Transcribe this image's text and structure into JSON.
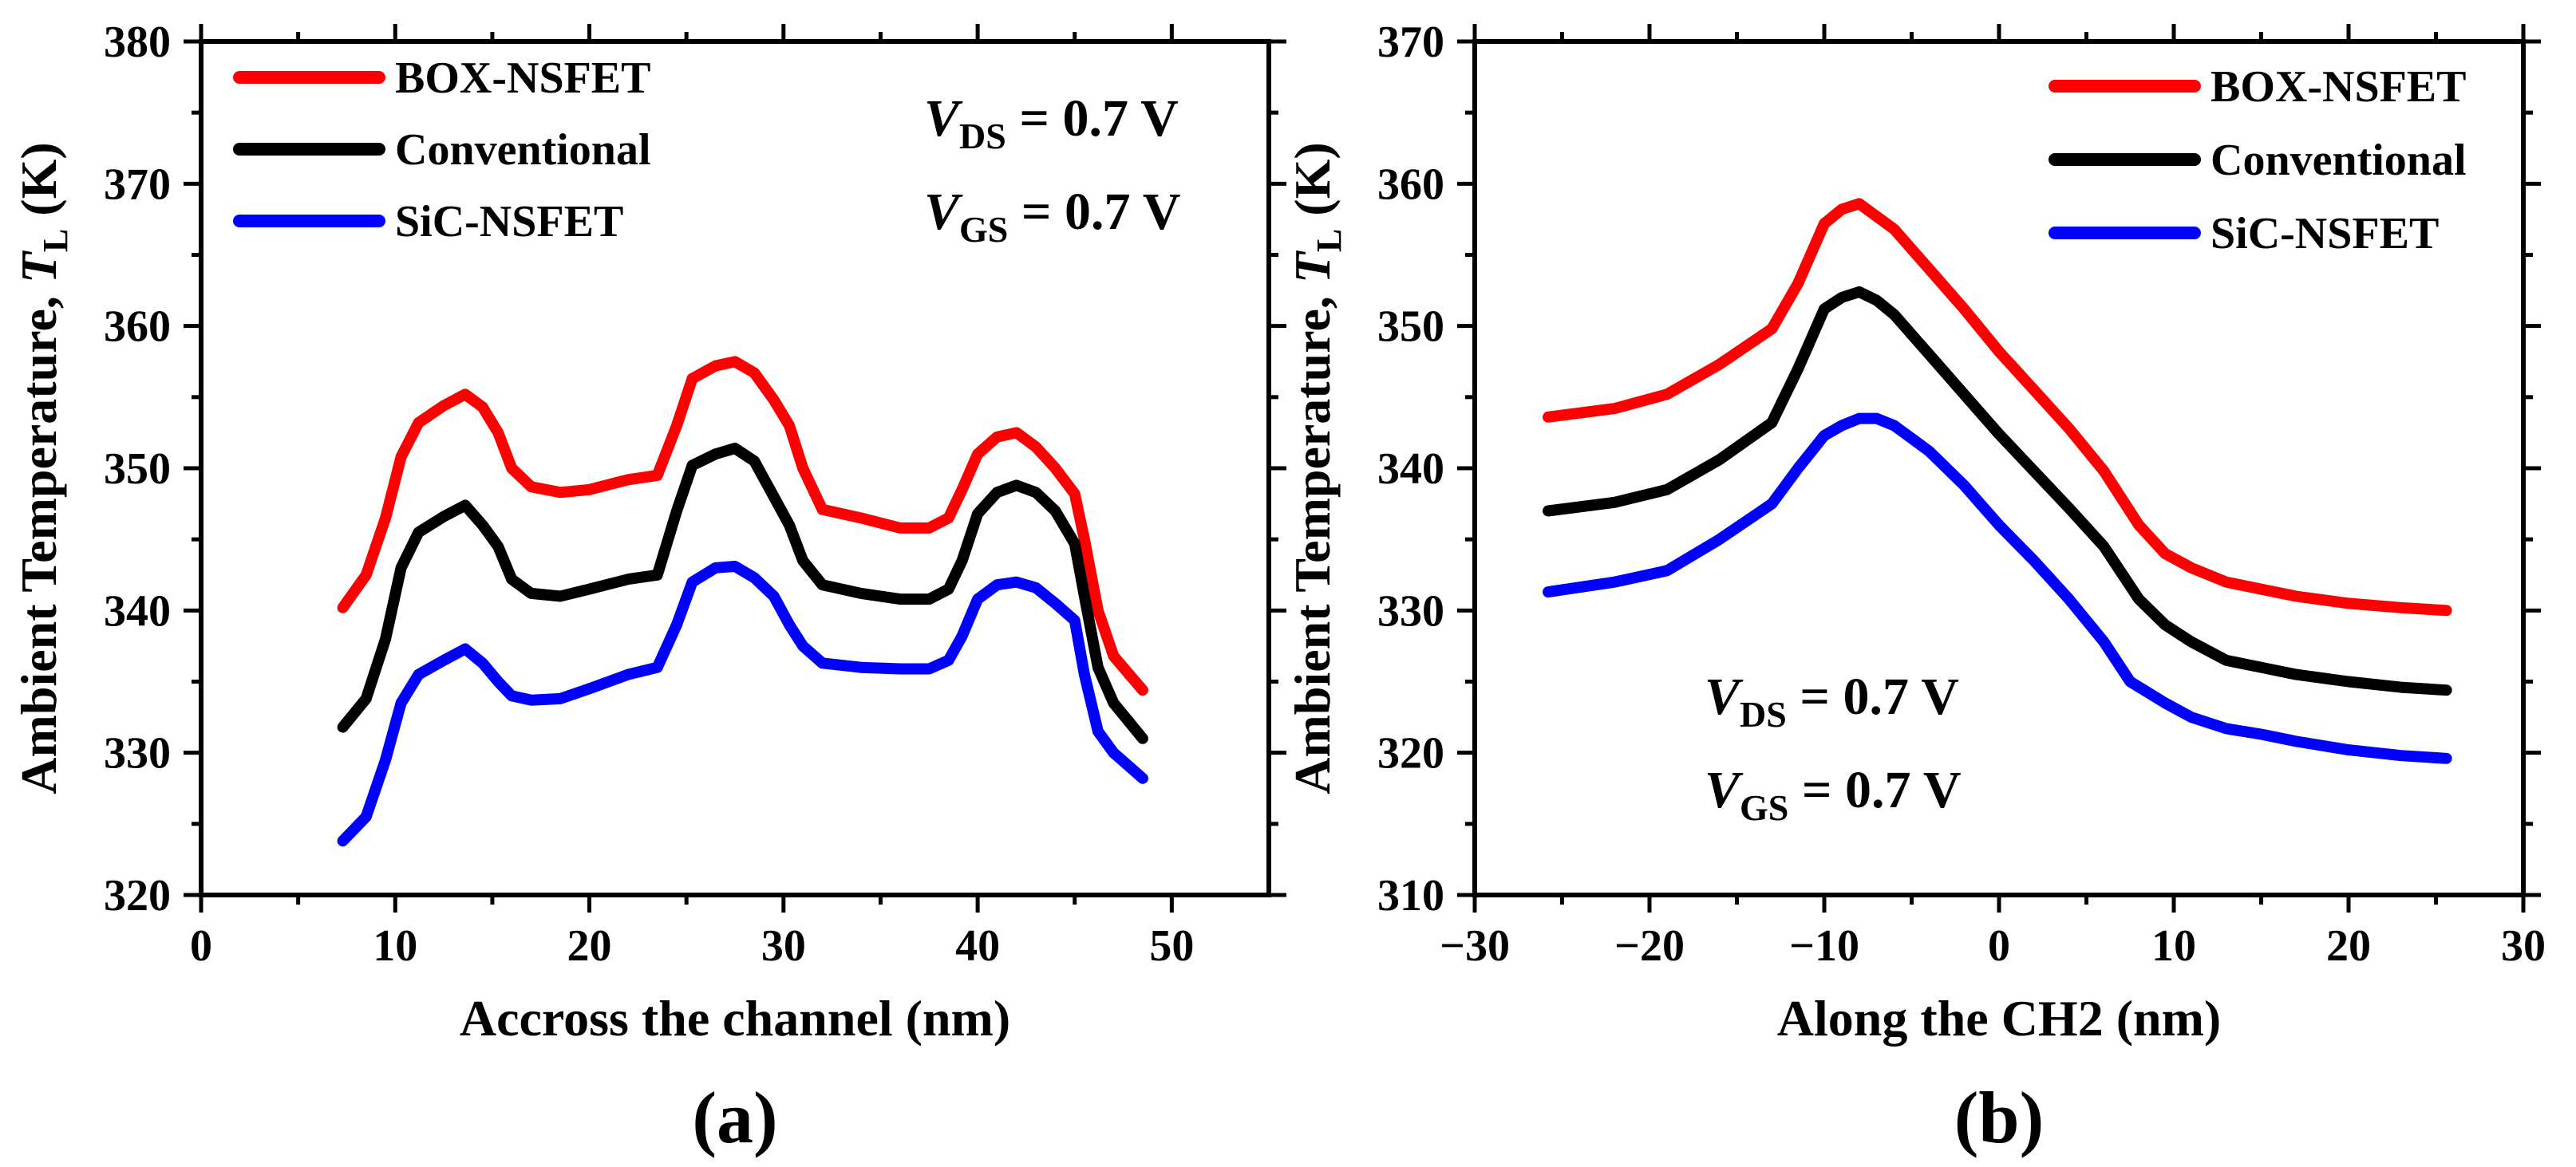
{
  "chart_data": [
    {
      "type": "line",
      "panel_label": "(a)",
      "xlabel": "Accross the channel (nm)",
      "ylabel_main": "Ambient Temperature, ",
      "ylabel_sym": "T",
      "ylabel_sub": "L",
      "ylabel_unit": " (K)",
      "xlim": [
        0,
        55
      ],
      "ylim": [
        320,
        380
      ],
      "xticks": [
        0,
        10,
        20,
        30,
        40,
        50
      ],
      "yticks": [
        320,
        330,
        340,
        350,
        360,
        370,
        380
      ],
      "legend_position": "top-left",
      "conditions": [
        {
          "sym": "V",
          "sub": "DS",
          "text": " = 0.7 V"
        },
        {
          "sym": "V",
          "sub": "GS",
          "text": " = 0.7 V"
        }
      ],
      "conditions_position": "top-right",
      "series": [
        {
          "name": "BOX-NSFET",
          "color": "#ff0000",
          "x": [
            7.3,
            8.5,
            9.5,
            10.3,
            11.2,
            12.5,
            13.6,
            14.5,
            15.3,
            16.0,
            17.0,
            18.5,
            20.0,
            22.0,
            23.5,
            24.5,
            25.3,
            26.5,
            27.5,
            28.5,
            29.5,
            30.3,
            31.0,
            32.0,
            34.0,
            36.0,
            37.5,
            38.5,
            39.2,
            40.0,
            41.0,
            42.0,
            43.0,
            44.0,
            45.0,
            45.5,
            46.2,
            47.0,
            48.5
          ],
          "y": [
            340.2,
            342.5,
            346.5,
            350.8,
            353.2,
            354.4,
            355.2,
            354.3,
            352.5,
            350.0,
            348.7,
            348.3,
            348.5,
            349.2,
            349.5,
            353.0,
            356.3,
            357.2,
            357.5,
            356.7,
            354.8,
            353.0,
            350.0,
            347.1,
            346.5,
            345.8,
            345.8,
            346.5,
            348.5,
            351.0,
            352.2,
            352.5,
            351.5,
            350.0,
            348.2,
            345.0,
            340.0,
            336.8,
            334.4
          ]
        },
        {
          "name": "Conventional",
          "color": "#000000",
          "x": [
            7.3,
            8.5,
            9.5,
            10.3,
            11.2,
            12.5,
            13.6,
            14.5,
            15.3,
            16.0,
            17.0,
            18.5,
            20.0,
            22.0,
            23.5,
            24.5,
            25.3,
            26.5,
            27.5,
            28.5,
            29.5,
            30.3,
            31.0,
            32.0,
            34.0,
            36.0,
            37.5,
            38.5,
            39.2,
            40.0,
            41.0,
            42.0,
            43.0,
            44.0,
            45.0,
            45.5,
            46.2,
            47.0,
            48.5
          ],
          "y": [
            331.8,
            333.8,
            338.0,
            343.0,
            345.5,
            346.6,
            347.4,
            346.0,
            344.5,
            342.2,
            341.2,
            341.0,
            341.5,
            342.2,
            342.5,
            347.0,
            350.2,
            351.0,
            351.4,
            350.5,
            348.0,
            346.0,
            343.5,
            341.8,
            341.2,
            340.8,
            340.8,
            341.5,
            343.5,
            346.8,
            348.3,
            348.8,
            348.3,
            347.0,
            344.7,
            341.0,
            336.0,
            333.5,
            331.0
          ]
        },
        {
          "name": "SiC-NSFET",
          "color": "#0000ff",
          "x": [
            7.3,
            8.5,
            9.5,
            10.3,
            11.2,
            12.5,
            13.6,
            14.5,
            15.3,
            16.0,
            17.0,
            18.5,
            20.0,
            22.0,
            23.5,
            24.5,
            25.3,
            26.5,
            27.5,
            28.5,
            29.5,
            30.3,
            31.0,
            32.0,
            34.0,
            36.0,
            37.5,
            38.5,
            39.2,
            40.0,
            41.0,
            42.0,
            43.0,
            44.0,
            45.0,
            45.5,
            46.2,
            47.0,
            48.5
          ],
          "y": [
            323.8,
            325.5,
            329.5,
            333.5,
            335.5,
            336.5,
            337.3,
            336.3,
            335.0,
            334.0,
            333.7,
            333.8,
            334.5,
            335.5,
            336.0,
            339.0,
            342.0,
            343.0,
            343.1,
            342.3,
            341.0,
            339.0,
            337.5,
            336.3,
            336.0,
            335.9,
            335.9,
            336.5,
            338.2,
            340.8,
            341.8,
            342.0,
            341.6,
            340.5,
            339.3,
            335.5,
            331.5,
            330.0,
            328.2
          ]
        }
      ]
    },
    {
      "type": "line",
      "panel_label": "(b)",
      "xlabel": "Along the CH2 (nm)",
      "ylabel_main": "Ambient Temperature, ",
      "ylabel_sym": "T",
      "ylabel_sub": "L",
      "ylabel_unit": " (K)",
      "xlim": [
        -30,
        30
      ],
      "ylim": [
        310,
        370
      ],
      "xticks": [
        -30,
        -20,
        -10,
        0,
        10,
        20,
        30
      ],
      "xtick_labels": [
        "−30",
        "−20",
        "−10",
        "0",
        "10",
        "20",
        "30"
      ],
      "yticks": [
        310,
        320,
        330,
        340,
        350,
        360,
        370
      ],
      "legend_position": "top-right",
      "conditions": [
        {
          "sym": "V",
          "sub": "DS",
          "text": " = 0.7 V"
        },
        {
          "sym": "V",
          "sub": "GS",
          "text": " = 0.7 V"
        }
      ],
      "conditions_position": "bottom-center",
      "series": [
        {
          "name": "BOX-NSFET",
          "color": "#ff0000",
          "x": [
            -25.8,
            -22.0,
            -19.0,
            -16.0,
            -13.0,
            -11.5,
            -10.0,
            -9.0,
            -8.0,
            -7.0,
            -6.0,
            -4.0,
            -2.0,
            0.0,
            2.0,
            4.0,
            6.0,
            8.0,
            9.5,
            11.0,
            13.0,
            15.0,
            17.0,
            20.0,
            23.0,
            25.6
          ],
          "y": [
            343.6,
            344.2,
            345.2,
            347.3,
            349.8,
            353.0,
            357.2,
            358.2,
            358.6,
            357.7,
            356.8,
            354.0,
            351.2,
            348.2,
            345.5,
            342.8,
            339.8,
            336.0,
            334.0,
            333.0,
            332.0,
            331.5,
            331.0,
            330.5,
            330.2,
            330.0
          ]
        },
        {
          "name": "Conventional",
          "color": "#000000",
          "x": [
            -25.8,
            -22.0,
            -19.0,
            -16.0,
            -13.0,
            -11.5,
            -10.0,
            -9.0,
            -8.0,
            -7.0,
            -6.0,
            -4.0,
            -2.0,
            0.0,
            2.0,
            4.0,
            6.0,
            8.0,
            9.5,
            11.0,
            13.0,
            15.0,
            17.0,
            20.0,
            23.0,
            25.6
          ],
          "y": [
            337.0,
            337.6,
            338.5,
            340.6,
            343.2,
            347.0,
            351.2,
            352.0,
            352.4,
            351.8,
            350.8,
            348.0,
            345.2,
            342.4,
            339.8,
            337.2,
            334.5,
            330.8,
            329.0,
            327.8,
            326.5,
            326.0,
            325.5,
            325.0,
            324.6,
            324.4
          ]
        },
        {
          "name": "SiC-NSFET",
          "color": "#0000ff",
          "x": [
            -25.8,
            -22.0,
            -19.0,
            -16.0,
            -13.0,
            -11.5,
            -10.0,
            -9.0,
            -8.0,
            -7.0,
            -6.0,
            -4.0,
            -2.0,
            0.0,
            2.0,
            4.0,
            6.0,
            7.5,
            9.5,
            11.0,
            13.0,
            15.0,
            17.0,
            20.0,
            23.0,
            25.6
          ],
          "y": [
            331.3,
            332.0,
            332.8,
            335.0,
            337.5,
            340.0,
            342.3,
            343.0,
            343.5,
            343.5,
            343.0,
            341.2,
            338.8,
            336.0,
            333.5,
            330.8,
            327.8,
            325.0,
            323.5,
            322.5,
            321.7,
            321.3,
            320.8,
            320.2,
            319.8,
            319.6
          ]
        }
      ]
    }
  ]
}
